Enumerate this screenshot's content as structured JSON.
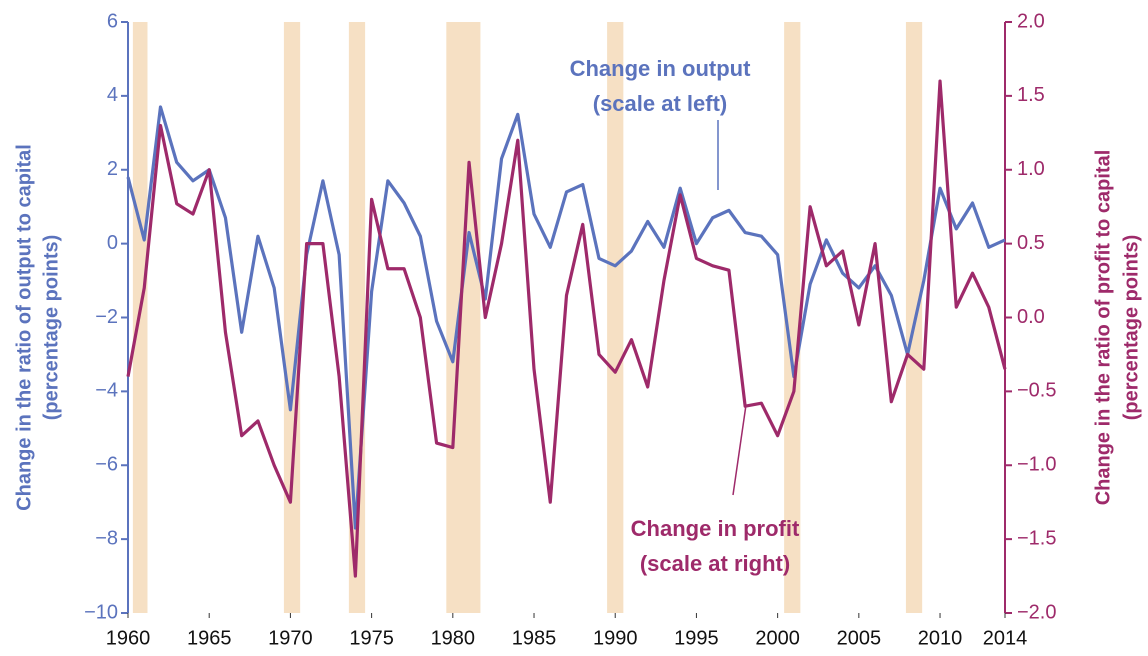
{
  "chart_data": {
    "type": "line",
    "y_label": [
      "Change in the ratio of output to capital",
      "(percentage points)"
    ],
    "y2_label": [
      "Change in the ratio of profit to capital",
      "(percentage points)"
    ],
    "annotations": [
      {
        "lines": [
          "Change in output",
          "(scale at left)"
        ],
        "series": 0
      },
      {
        "lines": [
          "Change in profit",
          "(scale at right)"
        ],
        "series": 1
      }
    ],
    "shaded_periods": [
      [
        1960.3,
        1961.2
      ],
      [
        1969.6,
        1970.6
      ],
      [
        1973.6,
        1974.6
      ],
      [
        1979.6,
        1981.7
      ],
      [
        1989.5,
        1990.5
      ],
      [
        2000.4,
        2001.4
      ],
      [
        2007.9,
        2008.9
      ]
    ],
    "shade_color": "#f6e0c4",
    "x": [
      1960,
      1961,
      1962,
      1963,
      1964,
      1965,
      1966,
      1967,
      1968,
      1969,
      1970,
      1971,
      1972,
      1973,
      1974,
      1975,
      1976,
      1977,
      1978,
      1979,
      1980,
      1981,
      1982,
      1983,
      1984,
      1985,
      1986,
      1987,
      1988,
      1989,
      1990,
      1991,
      1992,
      1993,
      1994,
      1995,
      1996,
      1997,
      1998,
      1999,
      2000,
      2001,
      2002,
      2003,
      2004,
      2005,
      2006,
      2007,
      2008,
      2009,
      2010,
      2011,
      2012,
      2013,
      2014
    ],
    "series": [
      {
        "name": "Change in output",
        "color": "#5b73bd",
        "axis": "y",
        "values": [
          1.8,
          0.1,
          3.7,
          2.2,
          1.7,
          2.0,
          0.7,
          -2.4,
          0.2,
          -1.2,
          -4.5,
          -0.3,
          1.7,
          -0.3,
          -7.7,
          -1.3,
          1.7,
          1.1,
          0.2,
          -2.1,
          -3.2,
          0.3,
          -1.5,
          2.3,
          3.5,
          0.8,
          -0.1,
          1.4,
          1.6,
          -0.4,
          -0.6,
          -0.2,
          0.6,
          -0.1,
          1.5,
          0.0,
          0.7,
          0.9,
          0.3,
          0.2,
          -0.3,
          -3.6,
          -1.1,
          0.1,
          -0.8,
          -1.2,
          -0.6,
          -1.4,
          -3.0,
          -1.0,
          1.5,
          0.4,
          1.1,
          -0.1,
          0.1
        ]
      },
      {
        "name": "Change in profit",
        "color": "#9e2a6a",
        "axis": "y2",
        "values": [
          -0.4,
          0.2,
          1.3,
          0.77,
          0.7,
          1.0,
          -0.1,
          -0.8,
          -0.7,
          -1.0,
          -1.25,
          0.5,
          0.5,
          -0.4,
          -1.75,
          0.8,
          0.33,
          0.33,
          0.0,
          -0.85,
          -0.88,
          1.05,
          0.0,
          0.5,
          1.2,
          -0.35,
          -1.25,
          0.15,
          0.63,
          -0.25,
          -0.37,
          -0.15,
          -0.47,
          0.25,
          0.83,
          0.4,
          0.35,
          0.32,
          -0.6,
          -0.58,
          -0.8,
          -0.5,
          0.75,
          0.35,
          0.45,
          -0.05,
          0.5,
          -0.57,
          -0.25,
          -0.35,
          1.6,
          0.07,
          0.3,
          0.07,
          -0.35
        ]
      }
    ],
    "xlim": [
      1960,
      2014
    ],
    "xticks": [
      1960,
      1965,
      1970,
      1975,
      1980,
      1985,
      1990,
      1995,
      2000,
      2005,
      2010,
      2014
    ],
    "ylim": [
      -10,
      6
    ],
    "yticks": [
      {
        "value": -10,
        "label": "−10"
      },
      {
        "value": -8,
        "label": "−8"
      },
      {
        "value": -6,
        "label": "−6"
      },
      {
        "value": -4,
        "label": "−4"
      },
      {
        "value": -2,
        "label": "−2"
      },
      0,
      2,
      4,
      6
    ],
    "y2lim": [
      -2,
      2
    ],
    "y2ticks": [
      {
        "value": -2,
        "label": "−2.0"
      },
      {
        "value": -1.5,
        "label": "−1.5"
      },
      {
        "value": -1,
        "label": "−1.0"
      },
      {
        "value": -0.5,
        "label": "−0.5"
      },
      {
        "value": 0,
        "label": "0.0"
      },
      {
        "value": 0.5,
        "label": "0.5"
      },
      {
        "value": 1,
        "label": "1.0"
      },
      {
        "value": 1.5,
        "label": "1.5"
      },
      {
        "value": 2,
        "label": "2.0"
      }
    ]
  }
}
